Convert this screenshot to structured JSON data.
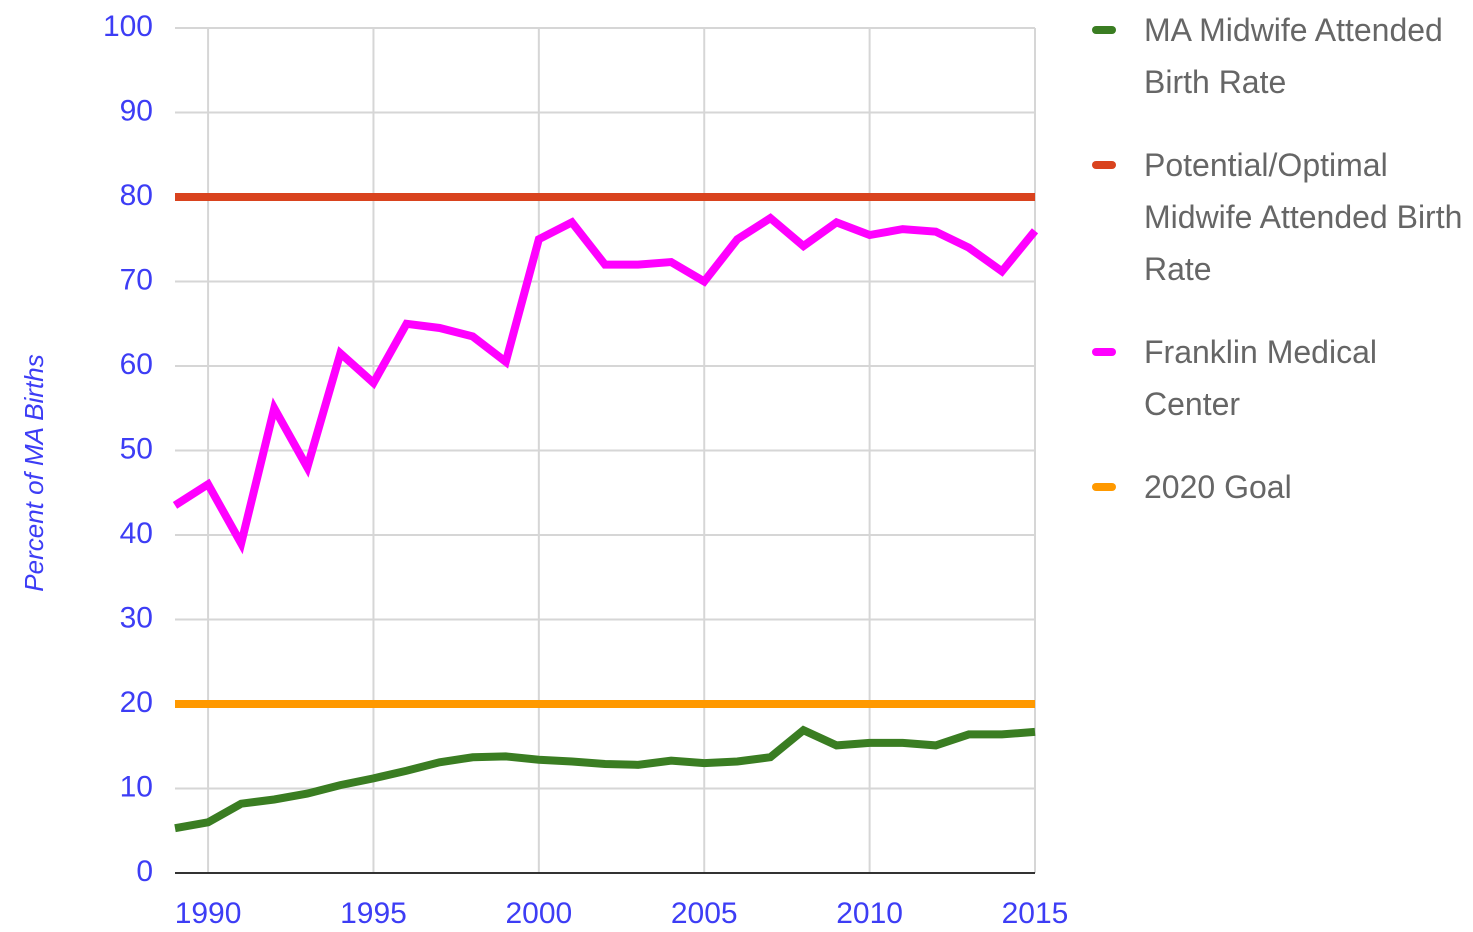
{
  "chart_data": {
    "type": "line",
    "y_label": "Percent of MA Births",
    "x": [
      1989,
      1990,
      1991,
      1992,
      1993,
      1994,
      1995,
      1996,
      1997,
      1998,
      1999,
      2000,
      2001,
      2002,
      2003,
      2004,
      2005,
      2006,
      2007,
      2008,
      2009,
      2010,
      2011,
      2012,
      2013,
      2014,
      2015
    ],
    "series": [
      {
        "name": "MA Midwife Attended Birth Rate",
        "color": "#3a7d22",
        "values": [
          5.3,
          6,
          8.2,
          8.7,
          9.4,
          10.4,
          11.2,
          12.1,
          13.1,
          13.7,
          13.8,
          13.4,
          13.2,
          12.9,
          12.8,
          13.3,
          13,
          13.2,
          13.7,
          16.9,
          15.1,
          15.4,
          15.4,
          15.1,
          16.4,
          16.4,
          16.7
        ]
      },
      {
        "name": "Potential/Optimal Midwife Attended Birth Rate",
        "color": "#d9431e",
        "values": [
          80,
          80,
          80,
          80,
          80,
          80,
          80,
          80,
          80,
          80,
          80,
          80,
          80,
          80,
          80,
          80,
          80,
          80,
          80,
          80,
          80,
          80,
          80,
          80,
          80,
          80,
          80
        ]
      },
      {
        "name": "Franklin Medical Center",
        "color": "#ff00ff",
        "values": [
          43.5,
          46,
          39,
          55,
          48,
          61.5,
          58,
          65,
          64.5,
          63.5,
          60.5,
          75,
          77,
          72,
          72,
          72.3,
          70,
          75,
          77.5,
          74.2,
          77,
          75.5,
          76.2,
          75.9,
          74,
          71.2,
          76
        ]
      },
      {
        "name": "2020 Goal",
        "color": "#ff9900",
        "values": [
          20,
          20,
          20,
          20,
          20,
          20,
          20,
          20,
          20,
          20,
          20,
          20,
          20,
          20,
          20,
          20,
          20,
          20,
          20,
          20,
          20,
          20,
          20,
          20,
          20,
          20,
          20
        ]
      }
    ],
    "xlim": [
      1989,
      2015
    ],
    "xticks": [
      1990,
      1995,
      2000,
      2005,
      2010,
      2015
    ],
    "ylim": [
      0,
      100
    ],
    "yticks": [
      0,
      10,
      20,
      30,
      40,
      50,
      60,
      70,
      80,
      90,
      100
    ],
    "grid": true,
    "legend": "right"
  }
}
